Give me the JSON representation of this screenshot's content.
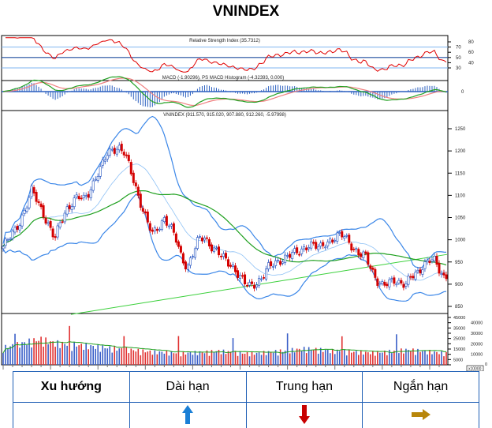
{
  "title": "VNINDEX",
  "chart_data": [
    {
      "type": "line",
      "panel": "rsi",
      "title": "Relative Strength Index (35.7312)",
      "yticks": [
        30,
        40,
        50,
        60,
        70,
        80
      ],
      "reference_lines": [
        30,
        50,
        70
      ],
      "colors": {
        "line": "#e00000",
        "ref": "#7fb4f0",
        "mid": "#1f4f9f"
      }
    },
    {
      "type": "line",
      "panel": "macd",
      "title": "MACD (-1.90296), PS MACD Histogram (-4.32393, 0.000)",
      "yticks": [
        0
      ],
      "colors": {
        "macd": "#22a022",
        "signal": "#f08080",
        "histogram": "#2a5fbf"
      }
    },
    {
      "type": "candlestick",
      "panel": "price",
      "title": "VNINDEX (911.570, 915.020, 907.880, 912.260, -5.97998)",
      "ylim": [
        830,
        1270
      ],
      "yticks": [
        850,
        900,
        950,
        1000,
        1050,
        1100,
        1150,
        1200,
        1250
      ],
      "close_path": [
        985,
        1000,
        1020,
        1045,
        1075,
        1110,
        1085,
        1060,
        1030,
        1000,
        1040,
        1070,
        1085,
        1095,
        1090,
        1110,
        1140,
        1160,
        1190,
        1205,
        1210,
        1195,
        1160,
        1120,
        1080,
        1040,
        1010,
        1030,
        1050,
        1030,
        1000,
        960,
        940,
        970,
        1000,
        1005,
        990,
        975,
        960,
        950,
        940,
        920,
        900,
        895,
        905,
        915,
        935,
        945,
        955,
        960,
        965,
        970,
        980,
        990,
        985,
        980,
        995,
        1000,
        1005,
        1010,
        1000,
        980,
        965,
        960,
        935,
        910,
        895,
        900,
        910,
        905,
        900,
        915,
        925,
        945,
        955,
        950,
        925,
        912
      ],
      "trendline": [
        832,
        967
      ],
      "colors": {
        "up": "#1f4fbf",
        "down": "#d40000",
        "bands": "#3a86e8",
        "ma_long": "#1fa01f"
      }
    },
    {
      "type": "bar",
      "panel": "volume",
      "yticks": [
        0,
        5000,
        10000,
        15000,
        20000,
        25000,
        30000,
        35000,
        40000,
        45000
      ],
      "scale_label": "x10000",
      "volume_path": [
        15000,
        17000,
        20000,
        22000,
        19000,
        18000,
        17000,
        16000,
        15000,
        14000,
        13000,
        12000,
        11000,
        11000,
        10000,
        10500,
        11000,
        12000,
        11000,
        10000,
        10000,
        11000,
        12000,
        13000,
        14000,
        13000,
        12000,
        12000,
        11000,
        10500,
        11000,
        12000,
        13000,
        12000,
        11000,
        10000
      ],
      "colors": {
        "up": "#3a5fc8",
        "down": "#e03030",
        "ma": "#1fa01f"
      }
    }
  ],
  "table": {
    "headers": [
      "Xu hướng",
      "Dài hạn",
      "Trung hạn",
      "Ngắn hạn"
    ],
    "arrows": [
      {
        "icon": "arrow-up-icon",
        "color": "#1a7fd6"
      },
      {
        "icon": "arrow-down-icon",
        "color": "#c80000"
      },
      {
        "icon": "arrow-right-icon",
        "color": "#b8860b"
      }
    ]
  }
}
